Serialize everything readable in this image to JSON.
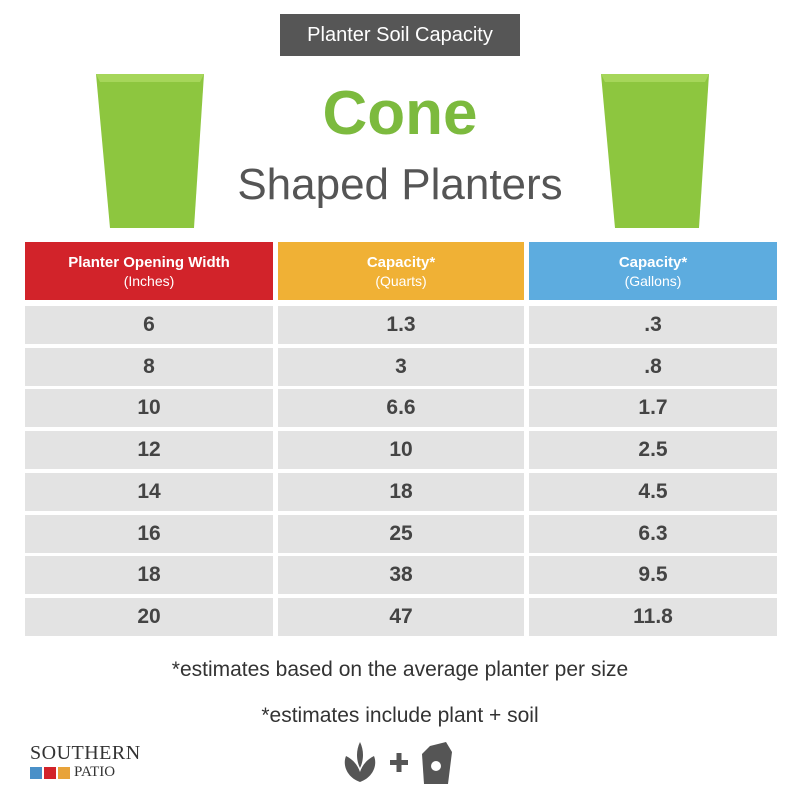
{
  "header": {
    "badge": "Planter Soil Capacity",
    "title": "Cone",
    "subtitle": "Shaped Planters"
  },
  "table": {
    "headers": [
      {
        "title": "Planter Opening Width",
        "unit": "(Inches)"
      },
      {
        "title": "Capacity*",
        "unit": "(Quarts)"
      },
      {
        "title": "Capacity*",
        "unit": "(Gallons)"
      }
    ],
    "rows": [
      [
        "6",
        "1.3",
        ".3"
      ],
      [
        "8",
        "3",
        ".8"
      ],
      [
        "10",
        "6.6",
        "1.7"
      ],
      [
        "12",
        "10",
        "2.5"
      ],
      [
        "14",
        "18",
        "4.5"
      ],
      [
        "16",
        "25",
        "6.3"
      ],
      [
        "18",
        "38",
        "9.5"
      ],
      [
        "20",
        "47",
        "11.8"
      ]
    ]
  },
  "notes": [
    "*estimates based on the average planter per size",
    "*estimates include plant + soil"
  ],
  "logo": {
    "top": "SOUTHERN",
    "bottom": "PATIO"
  }
}
